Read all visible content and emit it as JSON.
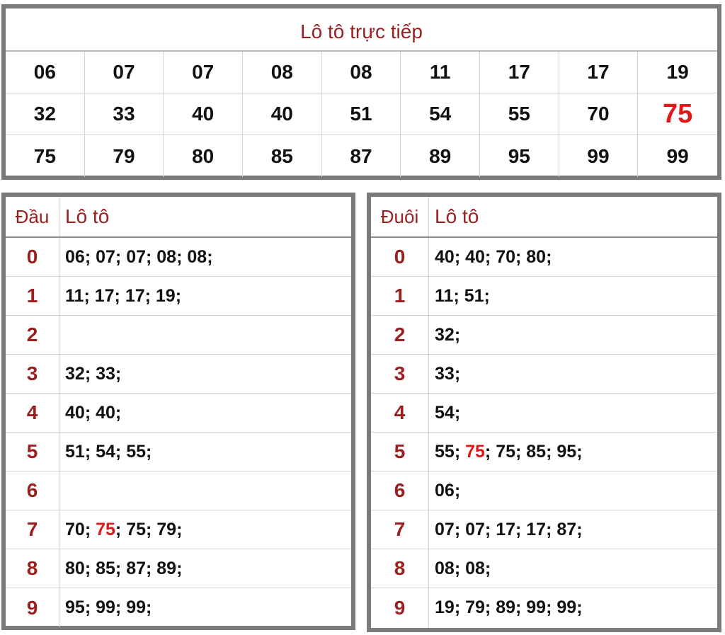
{
  "live": {
    "title": "Lô tô trực tiếp",
    "highlight_color": "#e01818",
    "numbers": [
      {
        "text": "06"
      },
      {
        "text": "07"
      },
      {
        "text": "07"
      },
      {
        "text": "08"
      },
      {
        "text": "08"
      },
      {
        "text": "11"
      },
      {
        "text": "17"
      },
      {
        "text": "17"
      },
      {
        "text": "19"
      },
      {
        "text": "32"
      },
      {
        "text": "33"
      },
      {
        "text": "40"
      },
      {
        "text": "40"
      },
      {
        "text": "51"
      },
      {
        "text": "54"
      },
      {
        "text": "55"
      },
      {
        "text": "70"
      },
      {
        "text": "75",
        "highlight": true
      },
      {
        "text": "75"
      },
      {
        "text": "79"
      },
      {
        "text": "80"
      },
      {
        "text": "85"
      },
      {
        "text": "87"
      },
      {
        "text": "89"
      },
      {
        "text": "95"
      },
      {
        "text": "99"
      },
      {
        "text": "99"
      }
    ]
  },
  "dau": {
    "header_key": "Đầu",
    "header_value": "Lô tô",
    "rows": [
      {
        "key": "0",
        "values": [
          {
            "text": "06"
          },
          {
            "text": "07"
          },
          {
            "text": "07"
          },
          {
            "text": "08"
          },
          {
            "text": "08"
          }
        ]
      },
      {
        "key": "1",
        "values": [
          {
            "text": "11"
          },
          {
            "text": "17"
          },
          {
            "text": "17"
          },
          {
            "text": "19"
          }
        ]
      },
      {
        "key": "2",
        "values": []
      },
      {
        "key": "3",
        "values": [
          {
            "text": "32"
          },
          {
            "text": "33"
          }
        ]
      },
      {
        "key": "4",
        "values": [
          {
            "text": "40"
          },
          {
            "text": "40"
          }
        ]
      },
      {
        "key": "5",
        "values": [
          {
            "text": "51"
          },
          {
            "text": "54"
          },
          {
            "text": "55"
          }
        ]
      },
      {
        "key": "6",
        "values": []
      },
      {
        "key": "7",
        "values": [
          {
            "text": "70"
          },
          {
            "text": "75",
            "highlight": true
          },
          {
            "text": "75"
          },
          {
            "text": "79"
          }
        ]
      },
      {
        "key": "8",
        "values": [
          {
            "text": "80"
          },
          {
            "text": "85"
          },
          {
            "text": "87"
          },
          {
            "text": "89"
          }
        ]
      },
      {
        "key": "9",
        "values": [
          {
            "text": "95"
          },
          {
            "text": "99"
          },
          {
            "text": "99"
          }
        ]
      }
    ]
  },
  "duoi": {
    "header_key": "Đuôi",
    "header_value": "Lô tô",
    "rows": [
      {
        "key": "0",
        "values": [
          {
            "text": "40"
          },
          {
            "text": "40"
          },
          {
            "text": "70"
          },
          {
            "text": "80"
          }
        ]
      },
      {
        "key": "1",
        "values": [
          {
            "text": "11"
          },
          {
            "text": "51"
          }
        ]
      },
      {
        "key": "2",
        "values": [
          {
            "text": "32"
          }
        ]
      },
      {
        "key": "3",
        "values": [
          {
            "text": "33"
          }
        ]
      },
      {
        "key": "4",
        "values": [
          {
            "text": "54"
          }
        ]
      },
      {
        "key": "5",
        "values": [
          {
            "text": "55"
          },
          {
            "text": "75",
            "highlight": true
          },
          {
            "text": "75"
          },
          {
            "text": "85"
          },
          {
            "text": "95"
          }
        ]
      },
      {
        "key": "6",
        "values": [
          {
            "text": "06"
          }
        ]
      },
      {
        "key": "7",
        "values": [
          {
            "text": "07"
          },
          {
            "text": "07"
          },
          {
            "text": "17"
          },
          {
            "text": "17"
          },
          {
            "text": "87"
          }
        ]
      },
      {
        "key": "8",
        "values": [
          {
            "text": "08"
          },
          {
            "text": "08"
          }
        ]
      },
      {
        "key": "9",
        "values": [
          {
            "text": "19"
          },
          {
            "text": "79"
          },
          {
            "text": "89"
          },
          {
            "text": "99"
          },
          {
            "text": "99"
          }
        ]
      }
    ]
  }
}
